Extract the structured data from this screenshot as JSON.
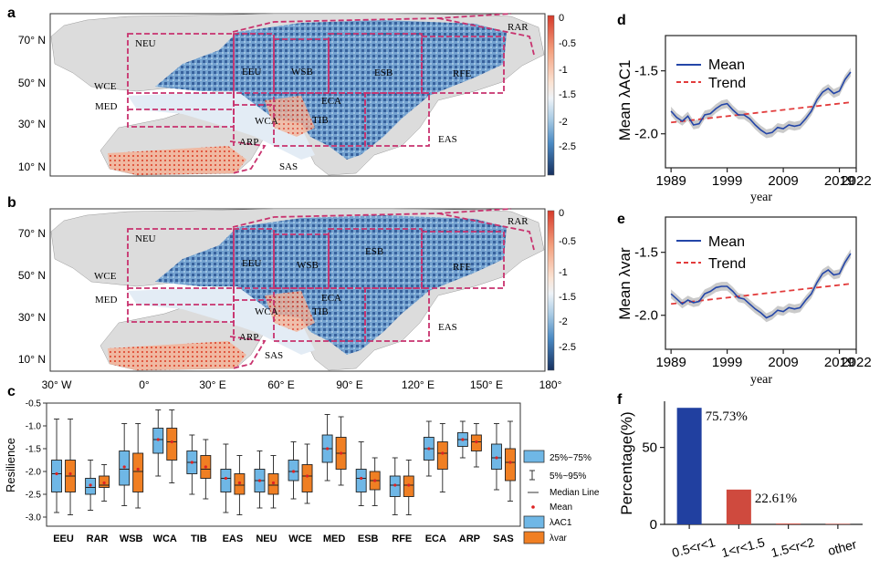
{
  "panels": {
    "a": "a",
    "b": "b",
    "c": "c",
    "d": "d",
    "e": "e",
    "f": "f"
  },
  "map": {
    "lat_labels": [
      "70° N",
      "50° N",
      "30° N",
      "10° N"
    ],
    "lon_labels": [
      "30° W",
      "0°",
      "30° E",
      "60° E",
      "90° E",
      "120° E",
      "150° E",
      "180°"
    ],
    "colorbar_ticks": [
      "0",
      "-0.5",
      "-1",
      "-1.5",
      "-2",
      "-2.5"
    ],
    "regions_a": [
      "RAR",
      "NEU",
      "EEU",
      "WSB",
      "ESB",
      "RFE",
      "WCE",
      "MED",
      "ECA",
      "WCA",
      "TIB",
      "ARP",
      "EAS",
      "SAS"
    ],
    "regions_b": [
      "RAR",
      "NEU",
      "EEU",
      "WSB",
      "ESB",
      "RFE",
      "WCE",
      "MED",
      "ECA",
      "WCA",
      "TIB",
      "ARP",
      "EAS",
      "SAS"
    ]
  },
  "chart_data": [
    {
      "type": "box",
      "panel": "c",
      "ylabel": "Resilience",
      "ylim": [
        -3.2,
        -0.5
      ],
      "yticks": [
        "-0.5",
        "-1.0",
        "-1.5",
        "-2.0",
        "-2.5",
        "-3.0"
      ],
      "categories": [
        "EEU",
        "RAR",
        "WSB",
        "WCA",
        "TIB",
        "EAS",
        "NEU",
        "WCE",
        "MED",
        "ESB",
        "RFE",
        "ECA",
        "ARP",
        "SAS"
      ],
      "series": [
        {
          "name": "λAC1",
          "color": "#6fb7e6",
          "stats": [
            {
              "low": -2.9,
              "q1": -2.45,
              "med": -2.05,
              "mean": -2.05,
              "q3": -1.75,
              "high": -0.85
            },
            {
              "low": -2.85,
              "q1": -2.5,
              "med": -2.35,
              "mean": -2.3,
              "q3": -2.15,
              "high": -1.75
            },
            {
              "low": -2.75,
              "q1": -2.3,
              "med": -1.95,
              "mean": -1.9,
              "q3": -1.55,
              "high": -0.95
            },
            {
              "low": -2.1,
              "q1": -1.6,
              "med": -1.3,
              "mean": -1.3,
              "q3": -1.05,
              "high": -0.65
            },
            {
              "low": -2.5,
              "q1": -2.05,
              "med": -1.8,
              "mean": -1.8,
              "q3": -1.55,
              "high": -1.2
            },
            {
              "low": -2.9,
              "q1": -2.45,
              "med": -2.15,
              "mean": -2.15,
              "q3": -1.95,
              "high": -1.4
            },
            {
              "low": -2.8,
              "q1": -2.45,
              "med": -2.2,
              "mean": -2.2,
              "q3": -1.95,
              "high": -1.55
            },
            {
              "low": -2.6,
              "q1": -2.2,
              "med": -2.0,
              "mean": -2.0,
              "q3": -1.75,
              "high": -1.35
            },
            {
              "low": -2.2,
              "q1": -1.8,
              "med": -1.5,
              "mean": -1.5,
              "q3": -1.2,
              "high": -0.75
            },
            {
              "low": -2.75,
              "q1": -2.45,
              "med": -2.15,
              "mean": -2.15,
              "q3": -1.95,
              "high": -1.35
            },
            {
              "low": -2.95,
              "q1": -2.55,
              "med": -2.3,
              "mean": -2.3,
              "q3": -2.1,
              "high": -1.7
            },
            {
              "low": -2.1,
              "q1": -1.75,
              "med": -1.5,
              "mean": -1.5,
              "q3": -1.25,
              "high": -0.9
            },
            {
              "low": -1.7,
              "q1": -1.45,
              "med": -1.3,
              "mean": -1.3,
              "q3": -1.15,
              "high": -0.9
            },
            {
              "low": -2.4,
              "q1": -1.95,
              "med": -1.7,
              "mean": -1.7,
              "q3": -1.4,
              "high": -0.95
            }
          ]
        },
        {
          "name": "λvar",
          "color": "#f07f23",
          "stats": [
            {
              "low": -2.95,
              "q1": -2.45,
              "med": -2.1,
              "mean": -2.05,
              "q3": -1.75,
              "high": -0.85
            },
            {
              "low": -2.65,
              "q1": -2.35,
              "med": -2.3,
              "mean": -2.25,
              "q3": -2.1,
              "high": -1.85
            },
            {
              "low": -2.8,
              "q1": -2.45,
              "med": -2.0,
              "mean": -1.95,
              "q3": -1.6,
              "high": -0.95
            },
            {
              "low": -2.25,
              "q1": -1.75,
              "med": -1.35,
              "mean": -1.35,
              "q3": -1.05,
              "high": -0.65
            },
            {
              "low": -2.6,
              "q1": -2.15,
              "med": -1.95,
              "mean": -1.9,
              "q3": -1.65,
              "high": -1.3
            },
            {
              "low": -2.95,
              "q1": -2.5,
              "med": -2.3,
              "mean": -2.25,
              "q3": -2.05,
              "high": -1.65
            },
            {
              "low": -2.8,
              "q1": -2.5,
              "med": -2.3,
              "mean": -2.25,
              "q3": -2.05,
              "high": -1.65
            },
            {
              "low": -2.7,
              "q1": -2.45,
              "med": -2.1,
              "mean": -2.1,
              "q3": -1.85,
              "high": -1.4
            },
            {
              "low": -2.3,
              "q1": -1.95,
              "med": -1.6,
              "mean": -1.6,
              "q3": -1.25,
              "high": -0.8
            },
            {
              "low": -2.75,
              "q1": -2.4,
              "med": -2.2,
              "mean": -2.2,
              "q3": -2.0,
              "high": -1.7
            },
            {
              "low": -2.95,
              "q1": -2.55,
              "med": -2.3,
              "mean": -2.3,
              "q3": -2.1,
              "high": -1.75
            },
            {
              "low": -2.45,
              "q1": -1.95,
              "med": -1.6,
              "mean": -1.6,
              "q3": -1.35,
              "high": -0.95
            },
            {
              "low": -1.9,
              "q1": -1.55,
              "med": -1.35,
              "mean": -1.35,
              "q3": -1.2,
              "high": -0.95
            },
            {
              "low": -2.65,
              "q1": -2.2,
              "med": -1.8,
              "mean": -1.8,
              "q3": -1.5,
              "high": -0.9
            }
          ]
        }
      ],
      "legend": [
        "25%~75%",
        "5%~95%",
        "Median Line",
        "Mean",
        "λAC1",
        "λvar"
      ]
    },
    {
      "type": "line",
      "panel": "d",
      "ylabel": "Mean λAC1",
      "xlabel": "year",
      "xlim": [
        1988,
        2022
      ],
      "ylim": [
        -2.27,
        -1.22
      ],
      "xticks": [
        "1989",
        "1999",
        "2009",
        "2019",
        "2022"
      ],
      "yticks": [
        "-1.5",
        "-2.0"
      ],
      "legend": [
        "Mean",
        "Trend"
      ],
      "x": [
        1989,
        1990,
        1991,
        1992,
        1993,
        1994,
        1995,
        1996,
        1997,
        1998,
        1999,
        2000,
        2001,
        2002,
        2003,
        2004,
        2005,
        2006,
        2007,
        2008,
        2009,
        2010,
        2011,
        2012,
        2013,
        2014,
        2015,
        2016,
        2017,
        2018,
        2019,
        2020,
        2021
      ],
      "mean": [
        -1.82,
        -1.87,
        -1.9,
        -1.86,
        -1.93,
        -1.92,
        -1.85,
        -1.84,
        -1.8,
        -1.77,
        -1.76,
        -1.81,
        -1.85,
        -1.85,
        -1.88,
        -1.93,
        -1.97,
        -2.0,
        -1.99,
        -1.95,
        -1.96,
        -1.93,
        -1.94,
        -1.93,
        -1.88,
        -1.82,
        -1.73,
        -1.67,
        -1.64,
        -1.68,
        -1.66,
        -1.57,
        -1.51
      ],
      "trend": [
        -1.91,
        -1.75
      ]
    },
    {
      "type": "line",
      "panel": "e",
      "ylabel": "Mean λvar",
      "xlabel": "year",
      "xlim": [
        1988,
        2022
      ],
      "ylim": [
        -2.27,
        -1.22
      ],
      "xticks": [
        "1989",
        "1999",
        "2009",
        "2019",
        "2022"
      ],
      "yticks": [
        "-1.5",
        "-2.0"
      ],
      "legend": [
        "Mean",
        "Trend"
      ],
      "x": [
        1989,
        1990,
        1991,
        1992,
        1993,
        1994,
        1995,
        1996,
        1997,
        1998,
        1999,
        2000,
        2001,
        2002,
        2003,
        2004,
        2005,
        2006,
        2007,
        2008,
        2009,
        2010,
        2011,
        2012,
        2013,
        2014,
        2015,
        2016,
        2017,
        2018,
        2019,
        2020,
        2021
      ],
      "mean": [
        -1.83,
        -1.87,
        -1.91,
        -1.88,
        -1.9,
        -1.89,
        -1.83,
        -1.81,
        -1.78,
        -1.77,
        -1.77,
        -1.81,
        -1.86,
        -1.87,
        -1.91,
        -1.95,
        -1.98,
        -2.02,
        -2.0,
        -1.96,
        -1.97,
        -1.94,
        -1.95,
        -1.94,
        -1.88,
        -1.83,
        -1.74,
        -1.67,
        -1.64,
        -1.68,
        -1.67,
        -1.58,
        -1.51
      ],
      "trend": [
        -1.91,
        -1.75
      ]
    },
    {
      "type": "bar",
      "panel": "f",
      "ylabel": "Percentage(%)",
      "ylim": [
        0,
        80
      ],
      "yticks": [
        "0",
        "50"
      ],
      "categories": [
        "0.5<r<1",
        "1<r<1.5",
        "1.5<r<2",
        "other"
      ],
      "values": [
        75.73,
        22.61,
        0.5,
        0.3
      ],
      "colors": [
        "#2140a0",
        "#cf4a3e",
        "#cf4a3e",
        "#cf4a3e"
      ],
      "labels": [
        "75.73%",
        "22.61%",
        "",
        ""
      ]
    }
  ]
}
